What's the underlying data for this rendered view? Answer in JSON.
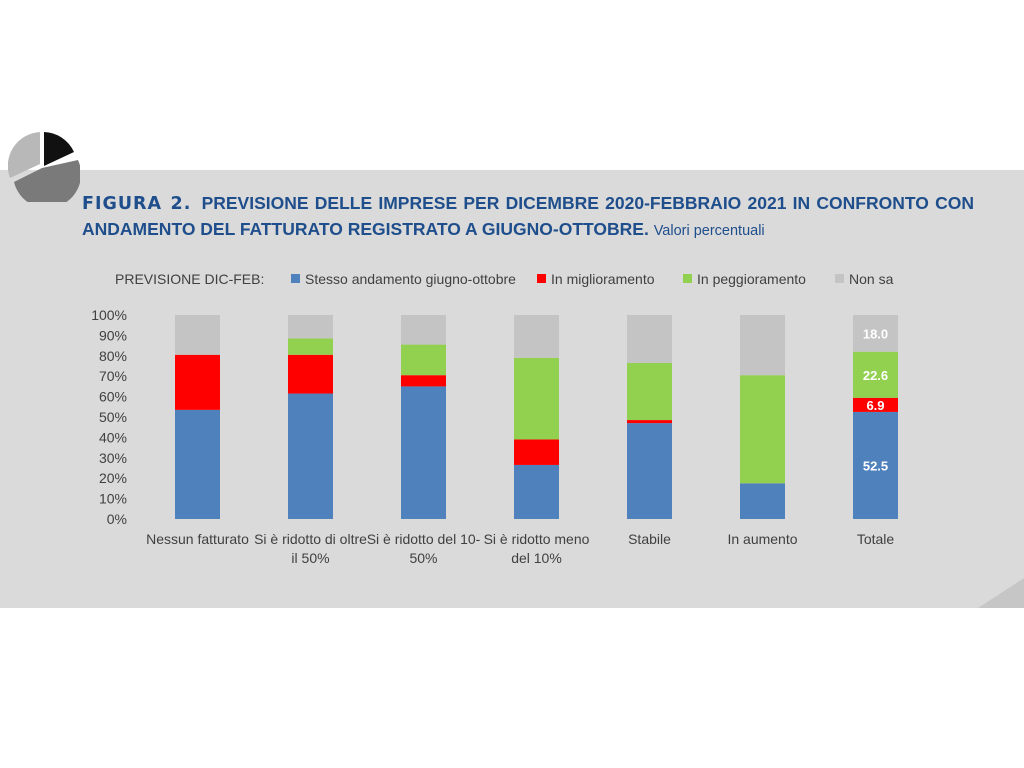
{
  "figure": {
    "label": "FIGURA 2.",
    "title": "PREVISIONE DELLE IMPRESE PER DICEMBRE 2020-FEBBRAIO 2021 IN CONFRONTO CON ANDAMENTO DEL FATTURATO REGISTRATO A GIUGNO-OTTOBRE.",
    "subtitle": "Valori percentuali"
  },
  "legend_title": "PREVISIONE DIC-FEB:",
  "colors": {
    "stesso": "#4f81bd",
    "miglioramento": "#ff0000",
    "peggioramento": "#92d050",
    "nonsa": "#c4c4c4"
  },
  "chart_data": {
    "type": "bar",
    "stacked": true,
    "categories": [
      [
        "Nessun fatturato"
      ],
      [
        "Si è ridotto di oltre",
        "il 50%"
      ],
      [
        "Si è ridotto del 10-",
        "50%"
      ],
      [
        "Si è ridotto meno",
        "del 10%"
      ],
      [
        "Stabile"
      ],
      [
        "In aumento"
      ],
      [
        "Totale"
      ]
    ],
    "series": [
      {
        "name": "Stesso andamento giugno-ottobre",
        "key": "stesso",
        "values": [
          53.5,
          61.5,
          65,
          26.5,
          47,
          17.5,
          52.5
        ]
      },
      {
        "name": "In miglioramento",
        "key": "miglioramento",
        "values": [
          27,
          19,
          5.5,
          12.5,
          1.5,
          0,
          6.9
        ]
      },
      {
        "name": "In peggioramento",
        "key": "peggioramento",
        "values": [
          0,
          8,
          15,
          40,
          28,
          53,
          22.6
        ]
      },
      {
        "name": "Non sa",
        "key": "nonsa",
        "values": [
          19.5,
          11.5,
          14.5,
          21,
          23.5,
          29.5,
          18.0
        ]
      }
    ],
    "yticks": [
      "0%",
      "10%",
      "20%",
      "30%",
      "40%",
      "50%",
      "60%",
      "70%",
      "80%",
      "90%",
      "100%"
    ],
    "ylim": [
      0,
      100
    ],
    "data_labels": {
      "category_index": 6,
      "values": [
        "52.5",
        "6.9",
        "22.6",
        "18.0"
      ]
    },
    "legend_position": "top"
  }
}
